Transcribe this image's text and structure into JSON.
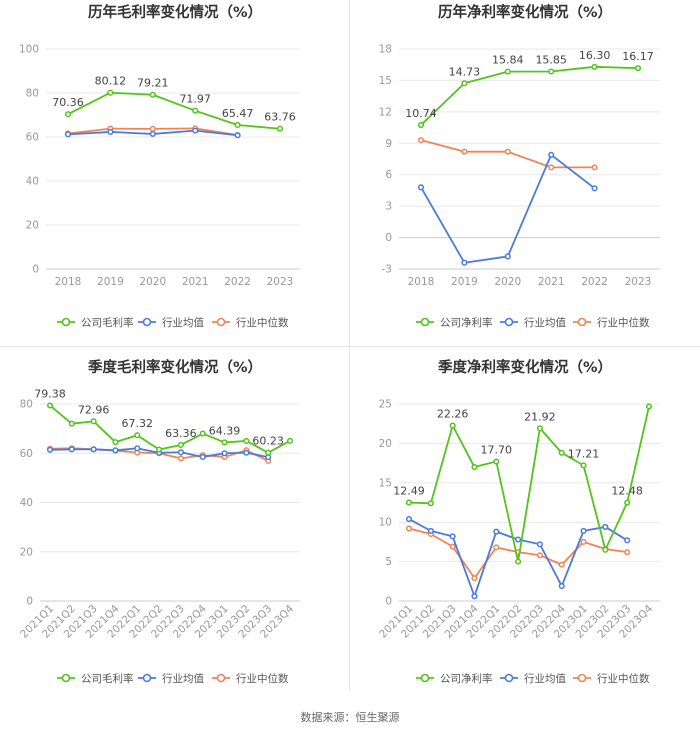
{
  "legend_labels": {
    "gross": "公司毛利率",
    "net": "公司净利率",
    "avg": "行业均值",
    "median": "行业中位数"
  },
  "colors": {
    "company": "#52c41a",
    "avg": "#4a7bdc",
    "median": "#f08456",
    "axis_text": "#999999",
    "grid": "#e8e8e8",
    "title": "#333333"
  },
  "source": "数据来源：恒生聚源",
  "chart_data": [
    {
      "type": "line",
      "title": "历年毛利率变化情况（%）",
      "categories": [
        "2018",
        "2019",
        "2020",
        "2021",
        "2022",
        "2023"
      ],
      "ylim": [
        0,
        100
      ],
      "yticks": [
        0,
        20,
        40,
        60,
        80,
        100
      ],
      "series": [
        {
          "name": "公司毛利率",
          "role": "company",
          "values": [
            70.36,
            80.12,
            79.21,
            71.97,
            65.47,
            63.76
          ],
          "labels": [
            true,
            true,
            true,
            true,
            true,
            true
          ]
        },
        {
          "name": "行业均值",
          "role": "avg",
          "values": [
            61.2,
            62.3,
            61.4,
            62.9,
            60.8,
            null
          ]
        },
        {
          "name": "行业中位数",
          "role": "median",
          "values": [
            61.6,
            63.8,
            63.7,
            63.9,
            60.9,
            null
          ]
        }
      ],
      "legend": [
        "gross",
        "avg",
        "median"
      ]
    },
    {
      "type": "line",
      "title": "历年净利率变化情况（%）",
      "categories": [
        "2018",
        "2019",
        "2020",
        "2021",
        "2022",
        "2023"
      ],
      "ylim": [
        -3,
        18
      ],
      "yticks": [
        -3,
        0,
        3,
        6,
        9,
        12,
        15,
        18
      ],
      "series": [
        {
          "name": "公司净利率",
          "role": "company",
          "values": [
            10.74,
            14.73,
            15.84,
            15.85,
            16.3,
            16.17
          ],
          "labels": [
            true,
            true,
            true,
            true,
            true,
            true
          ]
        },
        {
          "name": "行业均值",
          "role": "avg",
          "values": [
            4.8,
            -2.4,
            -1.8,
            7.9,
            4.7,
            null
          ]
        },
        {
          "name": "行业中位数",
          "role": "median",
          "values": [
            9.3,
            8.2,
            8.2,
            6.7,
            6.7,
            null
          ]
        }
      ],
      "legend": [
        "net",
        "avg",
        "median"
      ]
    },
    {
      "type": "line",
      "title": "季度毛利率变化情况（%）",
      "categories": [
        "2021Q1",
        "2021Q2",
        "2021Q3",
        "2021Q4",
        "2022Q1",
        "2022Q2",
        "2022Q3",
        "2022Q4",
        "2023Q1",
        "2023Q2",
        "2023Q3",
        "2023Q4"
      ],
      "ylim": [
        0,
        80
      ],
      "yticks": [
        0,
        20,
        40,
        60,
        80
      ],
      "series": [
        {
          "name": "公司毛利率",
          "role": "company",
          "values": [
            79.38,
            72.0,
            72.96,
            64.5,
            67.32,
            61.5,
            63.36,
            68.0,
            64.39,
            65.0,
            60.23,
            65.0
          ],
          "labels": [
            true,
            false,
            true,
            false,
            true,
            false,
            true,
            false,
            true,
            false,
            true,
            false
          ]
        },
        {
          "name": "行业均值",
          "role": "avg",
          "values": [
            61.4,
            61.6,
            61.6,
            61.2,
            62.0,
            60.2,
            60.4,
            58.5,
            60.0,
            60.2,
            58.4,
            null
          ]
        },
        {
          "name": "行业中位数",
          "role": "median",
          "values": [
            61.8,
            62.0,
            61.6,
            61.1,
            60.3,
            60.0,
            57.9,
            59.2,
            58.5,
            61.2,
            56.9,
            null
          ]
        }
      ],
      "legend": [
        "gross",
        "avg",
        "median"
      ]
    },
    {
      "type": "line",
      "title": "季度净利率变化情况（%）",
      "categories": [
        "2021Q1",
        "2021Q2",
        "2021Q3",
        "2021Q4",
        "2022Q1",
        "2022Q2",
        "2022Q3",
        "2022Q4",
        "2023Q1",
        "2023Q2",
        "2023Q3",
        "2023Q4"
      ],
      "ylim": [
        0,
        25
      ],
      "yticks": [
        0,
        5,
        10,
        15,
        20,
        25
      ],
      "series": [
        {
          "name": "公司净利率",
          "role": "company",
          "values": [
            12.49,
            12.4,
            22.26,
            17.0,
            17.7,
            5.0,
            21.92,
            18.8,
            17.21,
            6.5,
            12.48,
            24.7
          ],
          "labels": [
            true,
            false,
            true,
            false,
            true,
            false,
            true,
            false,
            true,
            false,
            true,
            false
          ]
        },
        {
          "name": "行业均值",
          "role": "avg",
          "values": [
            10.4,
            8.9,
            8.2,
            0.6,
            8.8,
            7.8,
            7.2,
            1.9,
            8.9,
            9.4,
            7.7,
            null
          ]
        },
        {
          "name": "行业中位数",
          "role": "median",
          "values": [
            9.2,
            8.5,
            6.9,
            2.9,
            6.8,
            6.2,
            5.8,
            4.6,
            7.5,
            6.6,
            6.2,
            null
          ]
        }
      ],
      "legend": [
        "net",
        "avg",
        "median"
      ]
    }
  ]
}
